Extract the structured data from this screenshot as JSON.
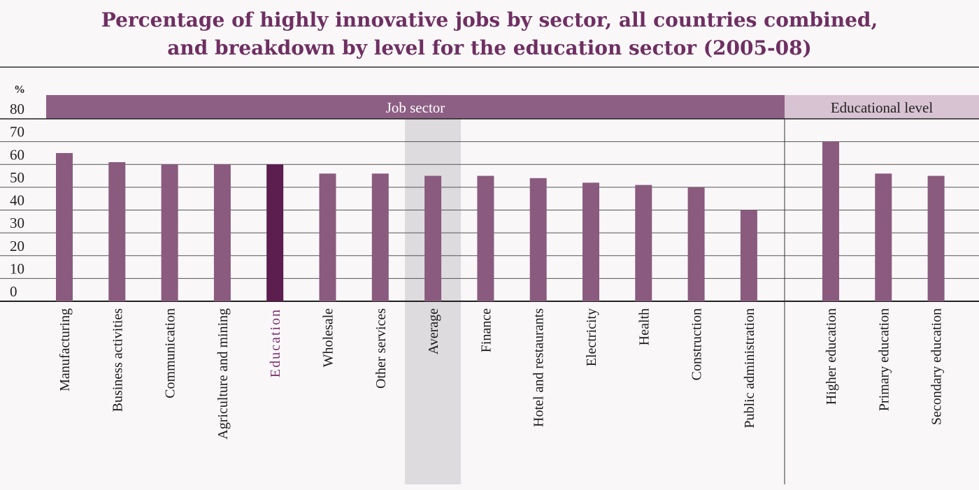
{
  "chart_data": {
    "type": "bar",
    "title_lines": [
      "Percentage of highly innovative jobs by sector, all countries combined,",
      "and breakdown by level for the education sector  (2005-08)"
    ],
    "ylabel": "%",
    "ylim": [
      0,
      80
    ],
    "yticks": [
      0,
      10,
      20,
      30,
      40,
      50,
      60,
      70,
      80
    ],
    "grid": true,
    "groups": [
      {
        "label": "Job sector",
        "categories": [
          "Manufacturing",
          "Business activities",
          "Communication",
          "Agriculture and mining",
          "Education",
          "Wholesale",
          "Other services",
          "Average",
          "Finance",
          "Hotel and restaurants",
          "Electricity",
          "Health",
          "Construction",
          "Public administration"
        ],
        "values": [
          65,
          61,
          60,
          60,
          60,
          56,
          56,
          55,
          55,
          54,
          52,
          51,
          50,
          40
        ]
      },
      {
        "label": "Educational level",
        "categories": [
          "Higher education",
          "Primary education",
          "Secondary education"
        ],
        "values": [
          70,
          56,
          55
        ]
      }
    ],
    "highlighted_category": "Education",
    "shaded_category": "Average",
    "colors": {
      "bar": "#8a5b7e",
      "highlight_bar": "#5c1d4f",
      "highlight_label": "#7a2f6c",
      "title": "#6e2f62",
      "sector_band": "#8e5f84",
      "education_band": "#d8c3d2",
      "average_shade": "#dedbde",
      "grid": "#555555"
    }
  }
}
